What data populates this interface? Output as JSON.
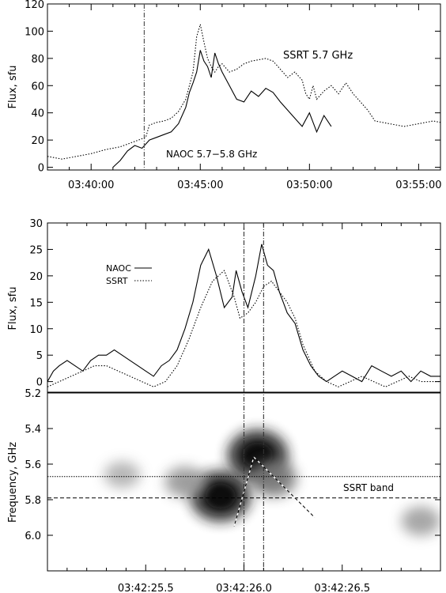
{
  "chart_data": [
    {
      "type": "line",
      "xlabel": "",
      "ylabel": "Flux, sfu",
      "x_ticks": [
        "03:40:00",
        "03:45:00",
        "03:50:00",
        "03:55:00"
      ],
      "xlim": [
        "03:38:00",
        "03:56:00"
      ],
      "ylim": [
        -2,
        120
      ],
      "y_ticks": [
        0,
        20,
        40,
        60,
        80,
        100,
        120
      ],
      "annotations": [
        "SSRT 5.7 GHz",
        "NAOC 5.7−5.8 GHz"
      ],
      "vertical_marker": "03:42:26",
      "series": [
        {
          "style": "dotted",
          "x": [
            "03:38:00",
            "03:38:40",
            "03:39:20",
            "03:40:00",
            "03:40:40",
            "03:41:20",
            "03:42:00",
            "03:42:30",
            "03:42:40",
            "03:43:00",
            "03:43:20",
            "03:43:40",
            "03:44:00",
            "03:44:20",
            "03:44:40",
            "03:44:50",
            "03:45:00",
            "03:45:10",
            "03:45:20",
            "03:45:30",
            "03:45:40",
            "03:45:50",
            "03:46:00",
            "03:46:20",
            "03:46:40",
            "03:47:00",
            "03:47:20",
            "03:47:40",
            "03:48:00",
            "03:48:20",
            "03:48:40",
            "03:49:00",
            "03:49:20",
            "03:49:40",
            "03:49:50",
            "03:50:00",
            "03:50:10",
            "03:50:20",
            "03:50:40",
            "03:51:00",
            "03:51:20",
            "03:51:40",
            "03:52:00",
            "03:52:20",
            "03:52:40",
            "03:53:00",
            "03:53:40",
            "03:54:20",
            "03:55:00",
            "03:55:40",
            "03:56:00"
          ],
          "y": [
            8,
            6,
            8,
            10,
            13,
            15,
            19,
            22,
            31,
            33,
            34,
            36,
            41,
            50,
            70,
            96,
            105,
            92,
            80,
            74,
            70,
            74,
            76,
            70,
            72,
            76,
            78,
            79,
            80,
            78,
            72,
            66,
            70,
            64,
            54,
            50,
            60,
            50,
            56,
            60,
            54,
            62,
            54,
            48,
            42,
            34,
            32,
            30,
            32,
            34,
            33
          ]
        },
        {
          "style": "solid",
          "x": [
            "03:41:00",
            "03:41:20",
            "03:41:40",
            "03:42:00",
            "03:42:20",
            "03:42:40",
            "03:43:00",
            "03:43:20",
            "03:43:40",
            "03:44:00",
            "03:44:10",
            "03:44:20",
            "03:44:30",
            "03:44:40",
            "03:44:50",
            "03:45:00",
            "03:45:10",
            "03:45:20",
            "03:45:30",
            "03:45:40",
            "03:45:50",
            "03:46:00",
            "03:46:20",
            "03:46:40",
            "03:47:00",
            "03:47:20",
            "03:47:40",
            "03:48:00",
            "03:48:20",
            "03:48:40",
            "03:49:00",
            "03:49:20",
            "03:49:40",
            "03:50:00",
            "03:50:20",
            "03:50:40",
            "03:51:00"
          ],
          "y": [
            0,
            5,
            12,
            16,
            14,
            20,
            22,
            24,
            26,
            32,
            38,
            44,
            55,
            62,
            70,
            86,
            78,
            74,
            66,
            84,
            76,
            70,
            60,
            50,
            48,
            56,
            52,
            58,
            55,
            48,
            42,
            36,
            30,
            40,
            26,
            38,
            30
          ]
        }
      ]
    },
    {
      "type": "line",
      "xlabel": "",
      "ylabel": "Flux, sfu",
      "ylim": [
        -2,
        30
      ],
      "y_ticks": [
        0,
        5,
        10,
        15,
        20,
        25,
        30
      ],
      "legend": [
        "NAOC",
        "SSRT"
      ],
      "legend_placement": "upper-left",
      "vertical_markers": [
        26.0,
        26.1
      ],
      "series": [
        {
          "name": "NAOC",
          "style": "solid",
          "x": [
            25.0,
            25.03,
            25.06,
            25.1,
            25.14,
            25.18,
            25.22,
            25.26,
            25.3,
            25.34,
            25.38,
            25.42,
            25.46,
            25.5,
            25.54,
            25.58,
            25.62,
            25.66,
            25.7,
            25.74,
            25.78,
            25.82,
            25.86,
            25.9,
            25.94,
            25.96,
            25.99,
            26.02,
            26.06,
            26.09,
            26.12,
            26.15,
            26.18,
            26.22,
            26.26,
            26.3,
            26.34,
            26.38,
            26.42,
            26.46,
            26.5,
            26.55,
            26.6,
            26.65,
            26.7,
            26.75,
            26.8,
            26.85,
            26.9,
            26.95,
            27.0
          ],
          "y": [
            0,
            2,
            3,
            4,
            3,
            2,
            4,
            5,
            5,
            6,
            5,
            4,
            3,
            2,
            1,
            3,
            4,
            6,
            10,
            15,
            22,
            25,
            20,
            14,
            16,
            21,
            17,
            14,
            20,
            26,
            22,
            21,
            17,
            13,
            11,
            6,
            3,
            1,
            0,
            1,
            2,
            1,
            0,
            3,
            2,
            1,
            2,
            0,
            2,
            1,
            1
          ]
        },
        {
          "name": "SSRT",
          "style": "dotted",
          "x": [
            25.0,
            25.06,
            25.12,
            25.18,
            25.24,
            25.3,
            25.36,
            25.42,
            25.48,
            25.54,
            25.6,
            25.66,
            25.72,
            25.78,
            25.84,
            25.9,
            25.95,
            25.98,
            26.02,
            26.06,
            26.1,
            26.14,
            26.18,
            26.22,
            26.26,
            26.3,
            26.36,
            26.42,
            26.48,
            26.54,
            26.6,
            26.66,
            26.72,
            26.78,
            26.84,
            26.9,
            27.0
          ],
          "y": [
            -1,
            0,
            1,
            2,
            3,
            3,
            2,
            1,
            0,
            -1,
            0,
            3,
            8,
            14,
            19,
            21,
            16,
            12,
            13,
            15,
            18,
            19,
            17,
            15,
            12,
            7,
            2,
            0,
            -1,
            0,
            1,
            0,
            -1,
            0,
            1,
            0,
            0
          ]
        }
      ]
    },
    {
      "type": "heatmap",
      "xlabel": "",
      "ylabel": "Frequency, GHz",
      "x_ticks": [
        "03:42:25.5",
        "03:42:26.0",
        "03:42:26.5"
      ],
      "xlim": [
        25.0,
        27.0
      ],
      "ylim": [
        6.2,
        5.2
      ],
      "y_ticks": [
        5.2,
        5.4,
        5.6,
        5.8,
        6.0
      ],
      "annotations": [
        "SSRT band"
      ],
      "band_lines": [
        5.67,
        5.79
      ],
      "vertical_markers": [
        26.0,
        26.1
      ],
      "blobs": [
        {
          "x": 25.88,
          "y": 5.78,
          "strength": 1.0
        },
        {
          "x": 26.07,
          "y": 5.55,
          "strength": 1.0
        },
        {
          "x": 26.15,
          "y": 5.68,
          "strength": 0.5
        },
        {
          "x": 25.7,
          "y": 5.7,
          "strength": 0.3
        },
        {
          "x": 25.38,
          "y": 5.66,
          "strength": 0.15
        },
        {
          "x": 26.9,
          "y": 5.92,
          "strength": 0.25
        }
      ],
      "drift_lines": [
        {
          "x": [
            25.95,
            26.05
          ],
          "y": [
            5.95,
            5.56
          ]
        },
        {
          "x": [
            26.05,
            26.36
          ],
          "y": [
            5.56,
            5.9
          ]
        }
      ]
    }
  ]
}
